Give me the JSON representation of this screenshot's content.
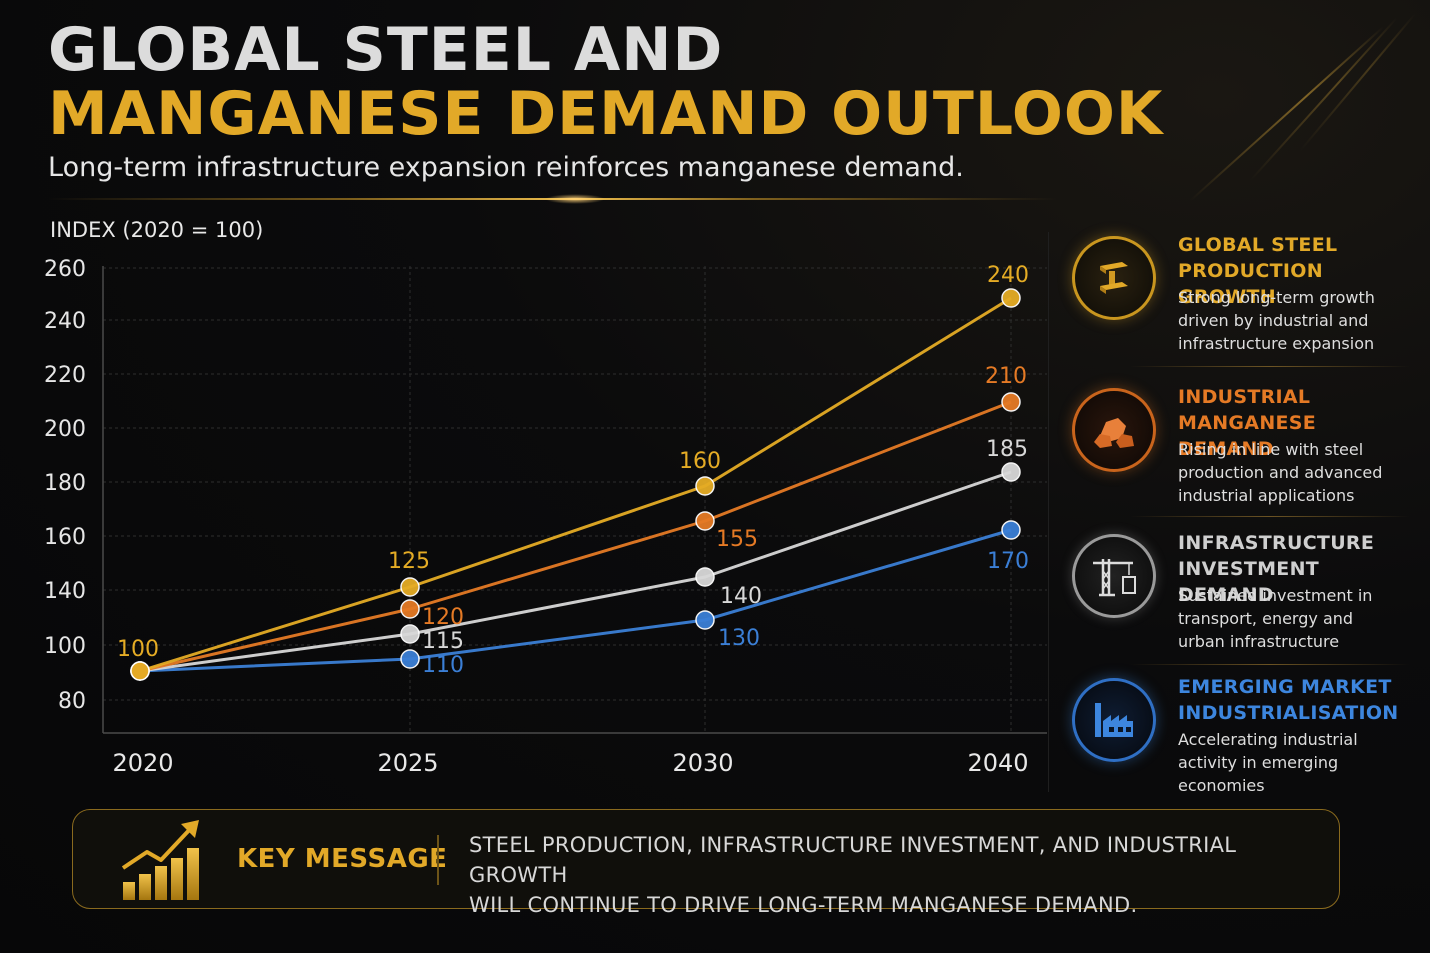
{
  "header": {
    "title_line1": "GLOBAL STEEL AND",
    "title_line2": "MANGANESE DEMAND OUTLOOK",
    "subtitle": "Long-term infrastructure expansion reinforces manganese demand."
  },
  "chart_data": {
    "type": "line",
    "title": "",
    "ylabel": "INDEX (2020 = 100)",
    "xlabel": "",
    "categories": [
      "2020",
      "2025",
      "2030",
      "2040"
    ],
    "y_ticks": [
      260,
      240,
      220,
      200,
      180,
      160,
      140,
      100,
      80
    ],
    "grid": true,
    "start_label": "100",
    "series": [
      {
        "values": [
          100,
          125,
          160,
          240
        ],
        "labels": [
          "100",
          "125",
          "160",
          "240"
        ],
        "color": "#e5ac25"
      },
      {
        "values": [
          100,
          120,
          155,
          210
        ],
        "labels": [
          "",
          "120",
          "155",
          "210"
        ],
        "color": "#e57a25"
      },
      {
        "values": [
          100,
          115,
          140,
          185
        ],
        "labels": [
          "",
          "115",
          "140",
          "185"
        ],
        "color": "#d8d8d8"
      },
      {
        "values": [
          100,
          110,
          130,
          170
        ],
        "labels": [
          "",
          "110",
          "130",
          "170"
        ],
        "color": "#3b7fd6"
      }
    ]
  },
  "sidebar": {
    "items": [
      {
        "title": "GLOBAL STEEL\nPRODUCTION GROWTH",
        "desc": "Strong long-term growth\ndriven by industrial and\ninfrastructure expansion",
        "color": "#e2a928",
        "icon": "steel-beam-icon"
      },
      {
        "title": "INDUSTRIAL\nMANGANESE DEMAND",
        "desc": "Rising in line with steel\nproduction and advanced\nindustrial applications",
        "color": "#e57a25",
        "icon": "ore-rocks-icon"
      },
      {
        "title": "INFRASTRUCTURE\nINVESTMENT DEMAND",
        "desc": "Sustained investment in\ntransport, energy and\nurban infrastructure",
        "color": "#cfcfcf",
        "icon": "crane-icon"
      },
      {
        "title": "EMERGING MARKET\nINDUSTRIALISATION",
        "desc": "Accelerating industrial\nactivity in emerging\neconomies",
        "color": "#3d86de",
        "icon": "factory-icon"
      }
    ]
  },
  "key_message": {
    "label": "KEY MESSAGE",
    "icon": "growth-bars-icon",
    "text": "STEEL PRODUCTION, INFRASTRUCTURE INVESTMENT, AND INDUSTRIAL GROWTH\nWILL CONTINUE TO DRIVE LONG-TERM MANGANESE DEMAND."
  }
}
